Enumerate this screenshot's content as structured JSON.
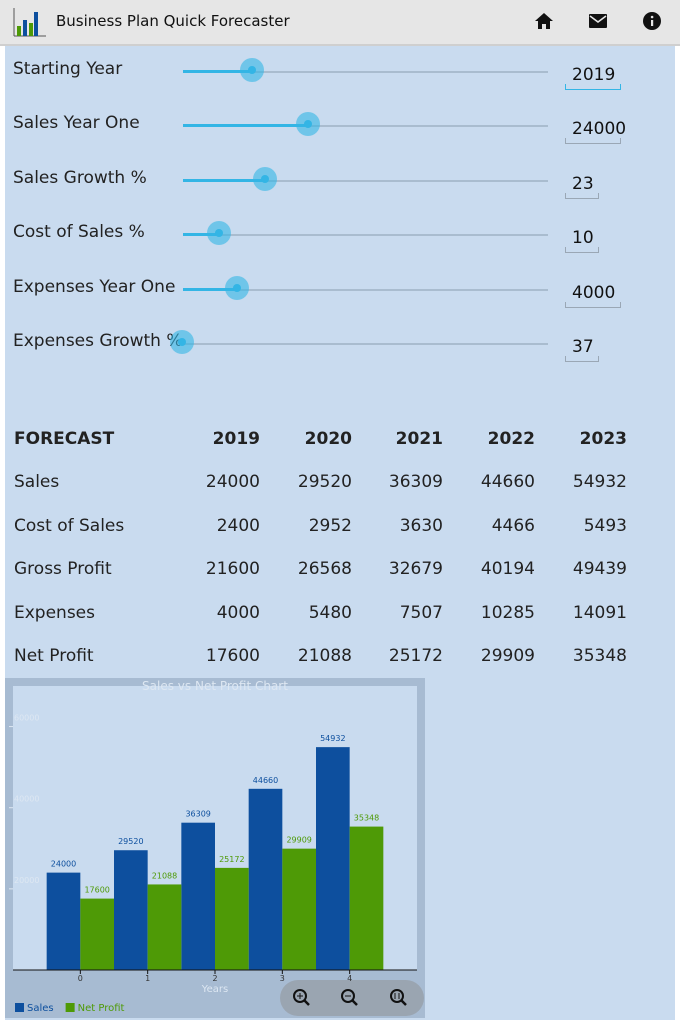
{
  "header": {
    "title": "Business Plan Quick Forecaster"
  },
  "inputs": [
    {
      "label": "Starting Year",
      "value": "2019"
    },
    {
      "label": "Sales Year One",
      "value": "24000"
    },
    {
      "label": "Sales Growth %",
      "value": "23"
    },
    {
      "label": "Cost of Sales %",
      "value": "10"
    },
    {
      "label": "Expenses Year One",
      "value": "4000"
    },
    {
      "label": "Expenses Growth %",
      "value": "37"
    }
  ],
  "table": {
    "header": [
      "FORECAST",
      2019,
      2020,
      2021,
      2022,
      2023
    ],
    "rows": [
      [
        "Sales",
        24000,
        29520,
        36309,
        44660,
        54932
      ],
      [
        "Cost of Sales",
        2400,
        2952,
        3630,
        4466,
        5493
      ],
      [
        "Gross Profit",
        21600,
        26568,
        32679,
        40194,
        49439
      ],
      [
        "Expenses",
        4000,
        5480,
        7507,
        10285,
        14091
      ],
      [
        "Net Profit",
        17600,
        21088,
        25172,
        29909,
        35348
      ]
    ]
  },
  "chart_data": {
    "type": "bar",
    "title": "Sales vs Net Profit Chart",
    "x_label": "Years",
    "x": [
      0,
      1,
      2,
      3,
      4
    ],
    "xlim": [
      -1,
      5
    ],
    "xticks": [
      0,
      1,
      2,
      3,
      4
    ],
    "ylim": [
      0,
      70000
    ],
    "yticks": [
      20000,
      40000,
      60000
    ],
    "series": [
      {
        "name": "Sales",
        "color": "#0d4f9e",
        "values": [
          24000,
          29520,
          36309,
          44660,
          54932
        ]
      },
      {
        "name": "Net Profit",
        "color": "#4e9a06",
        "values": [
          17600,
          21088,
          25172,
          29909,
          35348
        ]
      }
    ]
  }
}
